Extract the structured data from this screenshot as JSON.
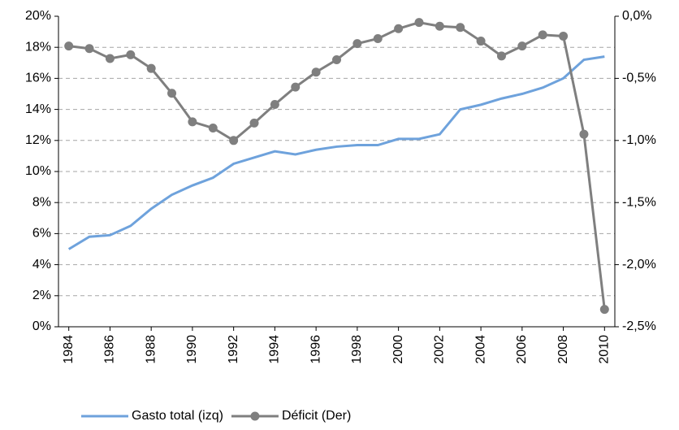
{
  "chart_data": {
    "type": "line",
    "x": [
      1984,
      1985,
      1986,
      1987,
      1988,
      1989,
      1990,
      1991,
      1992,
      1993,
      1994,
      1995,
      1996,
      1997,
      1998,
      1999,
      2000,
      2001,
      2002,
      2003,
      2004,
      2005,
      2006,
      2007,
      2008,
      2009,
      2010
    ],
    "xlim": [
      1983.5,
      2010.5
    ],
    "xticks": [
      1984,
      1986,
      1988,
      1990,
      1992,
      1994,
      1996,
      1998,
      2000,
      2002,
      2004,
      2006,
      2008,
      2010
    ],
    "ylim": [
      0,
      20
    ],
    "yticks": [
      {
        "value": 0,
        "label": "0%"
      },
      {
        "value": 2,
        "label": "2%"
      },
      {
        "value": 4,
        "label": "4%"
      },
      {
        "value": 6,
        "label": "6%"
      },
      {
        "value": 8,
        "label": "8%"
      },
      {
        "value": 10,
        "label": "10%"
      },
      {
        "value": 12,
        "label": "12%"
      },
      {
        "value": 14,
        "label": "14%"
      },
      {
        "value": 16,
        "label": "16%"
      },
      {
        "value": 18,
        "label": "18%"
      },
      {
        "value": 20,
        "label": "20%"
      }
    ],
    "y2lim": [
      -2.5,
      0
    ],
    "y2ticks": [
      {
        "value": -2.5,
        "label": "-2,5%"
      },
      {
        "value": -2.0,
        "label": "-2,0%"
      },
      {
        "value": -1.5,
        "label": "-1,5%"
      },
      {
        "value": -1.0,
        "label": "-1,0%"
      },
      {
        "value": -0.5,
        "label": "-0,5%"
      },
      {
        "value": 0,
        "label": "0,0%"
      }
    ],
    "grid": true,
    "legend": "bottom",
    "series": [
      {
        "name": "Gasto total (izq)",
        "color": "#6ea2dc",
        "marker": false,
        "values": [
          5.0,
          5.8,
          5.9,
          6.5,
          7.6,
          8.5,
          9.1,
          9.6,
          10.5,
          10.9,
          11.3,
          11.1,
          11.4,
          11.6,
          11.7,
          11.7,
          12.1,
          12.1,
          12.4,
          14.0,
          14.3,
          14.7,
          15.0,
          15.4,
          16.0,
          17.2,
          17.4
        ]
      },
      {
        "name": "Déficit (Der)",
        "color": "#7f7f7f",
        "marker": true,
        "axis": "y2",
        "values": [
          -0.24,
          -0.26,
          -0.34,
          -0.31,
          -0.42,
          -0.62,
          -0.85,
          -0.9,
          -1.0,
          -0.86,
          -0.71,
          -0.57,
          -0.45,
          -0.35,
          -0.22,
          -0.18,
          -0.1,
          -0.05,
          -0.08,
          -0.09,
          -0.2,
          -0.32,
          -0.24,
          -0.15,
          -0.16,
          -0.95,
          -2.36
        ]
      }
    ]
  }
}
